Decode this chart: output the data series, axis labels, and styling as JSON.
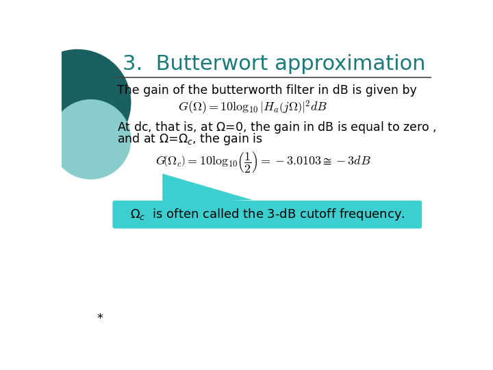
{
  "title": "3.  Butterwort approximation",
  "title_color": "#1a7a7a",
  "title_fontsize": 22,
  "background_color": "#ffffff",
  "text_color": "#000000",
  "dark_teal": "#1a6060",
  "light_teal": "#88cccc",
  "callout_teal": "#3dcfcf",
  "callout_text": "$\\Omega_c$  is often called the 3-dB cutoff frequency.",
  "text1": "The gain of the butterworth filter in dB is given by",
  "formula1": "$G(\\Omega)=10\\log_{10}\\left|H_a\\left(j\\Omega\\right)\\right|^2 dB$",
  "text2_line1": "At dc, that is, at $\\Omega$=0, the gain in dB is equal to zero ,",
  "text2_line2": "and at $\\Omega$=$\\Omega_c$, the gain is",
  "formula2": "$G\\!\\left(\\Omega_c\\right)=10\\log_{10}\\!\\left(\\dfrac{1}{2}\\right)=-3.0103\\cong-3dB$",
  "asterisk": "*",
  "fig_width": 7.2,
  "fig_height": 5.4,
  "dpi": 100
}
